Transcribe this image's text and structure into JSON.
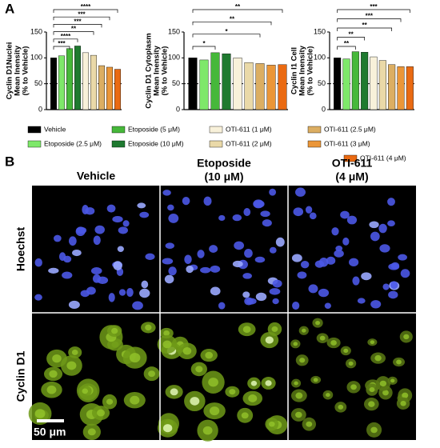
{
  "panel_a": {
    "label": "A"
  },
  "legend": {
    "items": [
      {
        "name": "Vehicle",
        "color": "#000000"
      },
      {
        "name": "Etoposide (2.5 μM)",
        "color": "#7ee86a"
      },
      {
        "name": "Etoposide (5 μM)",
        "color": "#46b83a"
      },
      {
        "name": "Etoposide (10 μM)",
        "color": "#1f7a30"
      },
      {
        "name": "OTI-611 (1 μM)",
        "color": "#f8f1da"
      },
      {
        "name": "OTI-611 (2 μM)",
        "color": "#ead9a8"
      },
      {
        "name": "OTI-611 (2.5 μM)",
        "color": "#dcae62"
      },
      {
        "name": "OTI-611 (3 μM)",
        "color": "#eb9638"
      },
      {
        "name": "OTI-611 (4 μM)",
        "color": "#ea6a12"
      }
    ]
  },
  "chart_data": [
    {
      "type": "bar",
      "y_label": [
        "Cyclin D1Nuclei",
        "Mean Inensity",
        "(% to Vehicle)"
      ],
      "values": [
        100,
        104,
        118,
        123,
        110,
        105,
        85,
        82,
        78
      ],
      "ylim": [
        0,
        150
      ],
      "yticks": [
        0,
        50,
        100,
        150
      ],
      "reference_line": 50,
      "annotations": [
        {
          "to": 8,
          "label": "****"
        },
        {
          "to": 7,
          "label": "***"
        },
        {
          "to": 6,
          "label": "***"
        },
        {
          "to": 5,
          "label": "**"
        },
        {
          "to": 3,
          "label": "****"
        },
        {
          "to": 2,
          "label": "***"
        }
      ]
    },
    {
      "type": "bar",
      "y_label": [
        "Cyclin D1 Cytoplasm",
        "Mean Inensity",
        "(% to Vehicle)"
      ],
      "values": [
        100,
        96,
        110,
        108,
        100,
        91,
        89,
        86,
        87
      ],
      "ylim": [
        0,
        150
      ],
      "yticks": [
        0,
        50,
        100,
        150
      ],
      "reference_line": 50,
      "annotations": [
        {
          "to": 8,
          "label": "**"
        },
        {
          "to": 7,
          "label": "**"
        },
        {
          "to": 6,
          "label": "*"
        },
        {
          "to": 2,
          "label": "*"
        }
      ]
    },
    {
      "type": "bar",
      "y_label": [
        "Cyclin I1 Cell",
        "Mean Inensity",
        "(% to Vehicle)"
      ],
      "values": [
        100,
        98,
        112,
        111,
        102,
        95,
        87,
        83,
        83
      ],
      "ylim": [
        0,
        150
      ],
      "yticks": [
        0,
        50,
        100,
        150
      ],
      "reference_line": 50,
      "annotations": [
        {
          "to": 8,
          "label": "***"
        },
        {
          "to": 7,
          "label": "***"
        },
        {
          "to": 6,
          "label": "**"
        },
        {
          "to": 3,
          "label": "**"
        },
        {
          "to": 2,
          "label": "**"
        }
      ]
    }
  ],
  "panel_b": {
    "label": "B",
    "columns": [
      [
        "Vehicle"
      ],
      [
        "Etoposide",
        "(10 μM)"
      ],
      [
        "OTI-611",
        "(4 μM)"
      ]
    ],
    "rows": [
      "Hoechst",
      "Cyclin D1"
    ],
    "scale_bar": "50 μm"
  }
}
